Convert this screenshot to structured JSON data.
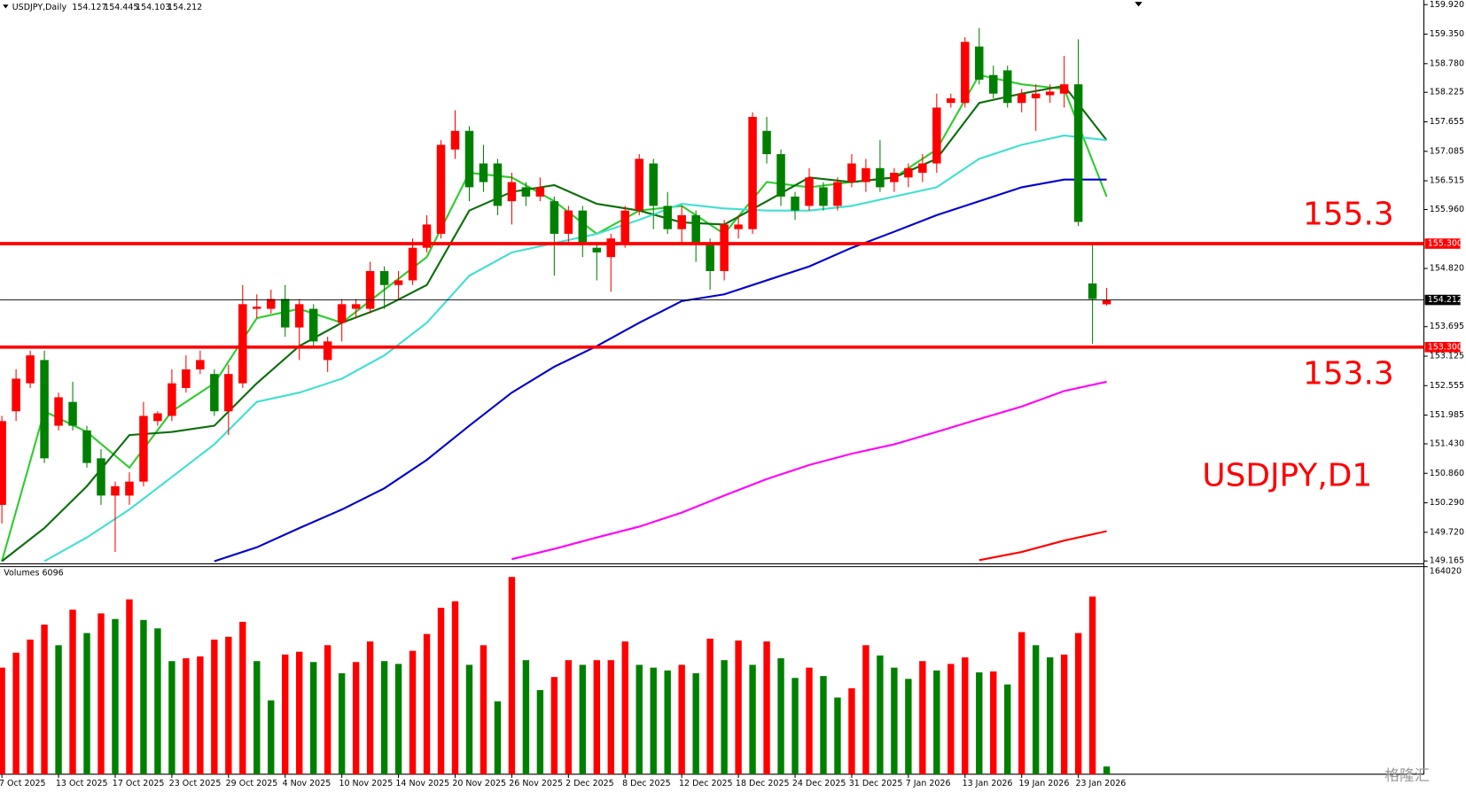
{
  "chart_data": {
    "type": "candlestick",
    "symbol_title": "USDJPY,Daily",
    "watermark": "格隆汇",
    "bull_color": "#ff0000",
    "bear_color": "#008000",
    "ylim": [
      149.11,
      160.01
    ],
    "yticks": [
      {
        "value": 159.92,
        "label": "159.920"
      },
      {
        "value": 159.35,
        "label": "159.350"
      },
      {
        "value": 158.78,
        "label": "158.780"
      },
      {
        "value": 158.225,
        "label": "158.225"
      },
      {
        "value": 157.655,
        "label": "157.655"
      },
      {
        "value": 157.085,
        "label": "157.085"
      },
      {
        "value": 156.515,
        "label": "156.515"
      },
      {
        "value": 155.96,
        "label": "155.960"
      },
      {
        "value": 154.82,
        "label": "154.820"
      },
      {
        "value": 153.695,
        "label": "153.695"
      },
      {
        "value": 153.125,
        "label": "153.125"
      },
      {
        "value": 152.555,
        "label": "152.555"
      },
      {
        "value": 151.985,
        "label": "151.985"
      },
      {
        "value": 151.43,
        "label": "151.430"
      },
      {
        "value": 150.86,
        "label": "150.860"
      },
      {
        "value": 150.29,
        "label": "150.290"
      },
      {
        "value": 149.72,
        "label": "149.720"
      },
      {
        "value": 149.165,
        "label": "149.165"
      }
    ],
    "xticks": [
      {
        "value": 0,
        "label": "7 Oct 2025"
      },
      {
        "value": 4,
        "label": "13 Oct 2025"
      },
      {
        "value": 8,
        "label": "17 Oct 2025"
      },
      {
        "value": 12,
        "label": "23 Oct 2025"
      },
      {
        "value": 16,
        "label": "29 Oct 2025"
      },
      {
        "value": 20,
        "label": "4 Nov 2025"
      },
      {
        "value": 24,
        "label": "10 Nov 2025"
      },
      {
        "value": 28,
        "label": "14 Nov 2025"
      },
      {
        "value": 32,
        "label": "20 Nov 2025"
      },
      {
        "value": 36,
        "label": "26 Nov 2025"
      },
      {
        "value": 40,
        "label": "2 Dec 2025"
      },
      {
        "value": 44,
        "label": "8 Dec 2025"
      },
      {
        "value": 48,
        "label": "12 Dec 2025"
      },
      {
        "value": 52,
        "label": "18 Dec 2025"
      },
      {
        "value": 56,
        "label": "24 Dec 2025"
      },
      {
        "value": 60,
        "label": "31 Dec 2025"
      },
      {
        "value": 64,
        "label": "7 Jan 2026"
      },
      {
        "value": 68,
        "label": "13 Jan 2026"
      },
      {
        "value": 72,
        "label": "19 Jan 2026"
      },
      {
        "value": 76,
        "label": "23 Jan 2026"
      }
    ],
    "candles": [
      [
        150.25,
        151.97,
        149.89,
        151.87
      ],
      [
        152.06,
        152.87,
        151.87,
        152.69
      ],
      [
        152.6,
        153.23,
        152.51,
        153.14
      ],
      [
        153.05,
        153.23,
        151.06,
        151.15
      ],
      [
        151.78,
        152.42,
        151.69,
        152.33
      ],
      [
        152.24,
        152.63,
        151.69,
        151.78
      ],
      [
        151.69,
        151.78,
        150.97,
        151.06
      ],
      [
        151.15,
        151.33,
        150.25,
        150.43
      ],
      [
        150.43,
        150.7,
        149.34,
        150.61
      ],
      [
        150.43,
        150.88,
        150.25,
        150.7
      ],
      [
        150.7,
        152.24,
        150.61,
        151.97
      ],
      [
        151.87,
        152.06,
        151.78,
        152.02
      ],
      [
        151.97,
        152.87,
        151.87,
        152.6
      ],
      [
        152.51,
        153.14,
        152.42,
        152.87
      ],
      [
        152.87,
        153.23,
        152.78,
        153.05
      ],
      [
        152.78,
        152.87,
        151.97,
        152.06
      ],
      [
        152.06,
        152.96,
        151.6,
        152.78
      ],
      [
        152.6,
        154.5,
        152.51,
        154.13
      ],
      [
        154.04,
        154.32,
        153.86,
        154.08
      ],
      [
        154.04,
        154.41,
        153.95,
        154.23
      ],
      [
        154.23,
        154.5,
        153.5,
        153.68
      ],
      [
        153.68,
        154.23,
        153.05,
        154.13
      ],
      [
        154.04,
        154.13,
        153.32,
        153.41
      ],
      [
        153.05,
        153.5,
        152.82,
        153.41
      ],
      [
        153.77,
        154.23,
        153.41,
        154.13
      ],
      [
        154.04,
        154.23,
        153.86,
        154.13
      ],
      [
        154.04,
        154.95,
        153.95,
        154.77
      ],
      [
        154.77,
        154.86,
        154.04,
        154.5
      ],
      [
        154.5,
        154.77,
        154.23,
        154.59
      ],
      [
        154.59,
        155.4,
        154.5,
        155.22
      ],
      [
        155.22,
        155.85,
        155.13,
        155.67
      ],
      [
        155.49,
        157.3,
        155.4,
        157.21
      ],
      [
        157.12,
        157.88,
        156.94,
        157.48
      ],
      [
        157.48,
        157.57,
        156.12,
        156.39
      ],
      [
        156.85,
        157.21,
        156.3,
        156.49
      ],
      [
        156.85,
        156.94,
        155.85,
        156.03
      ],
      [
        156.12,
        156.67,
        155.67,
        156.49
      ],
      [
        156.39,
        156.49,
        156.03,
        156.21
      ],
      [
        156.21,
        156.58,
        156.12,
        156.39
      ],
      [
        156.12,
        156.21,
        154.68,
        155.49
      ],
      [
        155.49,
        156.03,
        155.31,
        155.94
      ],
      [
        155.94,
        156.03,
        155.04,
        155.31
      ],
      [
        155.22,
        155.31,
        154.59,
        155.13
      ],
      [
        155.04,
        155.49,
        154.37,
        155.4
      ],
      [
        155.31,
        156.03,
        155.22,
        155.94
      ],
      [
        155.94,
        157.03,
        155.85,
        156.94
      ],
      [
        156.85,
        156.94,
        155.58,
        156.03
      ],
      [
        156.03,
        156.3,
        155.49,
        155.58
      ],
      [
        155.58,
        156.03,
        155.31,
        155.85
      ],
      [
        155.85,
        155.94,
        154.95,
        155.31
      ],
      [
        155.31,
        155.4,
        154.41,
        154.77
      ],
      [
        154.77,
        155.76,
        154.59,
        155.67
      ],
      [
        155.58,
        155.85,
        155.4,
        155.67
      ],
      [
        155.58,
        157.84,
        155.49,
        157.75
      ],
      [
        157.48,
        157.75,
        156.85,
        157.03
      ],
      [
        157.03,
        157.12,
        156.03,
        156.21
      ],
      [
        156.21,
        156.3,
        155.76,
        155.94
      ],
      [
        156.03,
        156.76,
        155.94,
        156.58
      ],
      [
        156.39,
        156.49,
        155.94,
        156.03
      ],
      [
        156.03,
        156.58,
        155.94,
        156.49
      ],
      [
        156.49,
        157.03,
        156.39,
        156.85
      ],
      [
        156.49,
        156.94,
        156.3,
        156.76
      ],
      [
        156.76,
        157.3,
        156.3,
        156.39
      ],
      [
        156.49,
        156.76,
        156.3,
        156.67
      ],
      [
        156.58,
        156.85,
        156.39,
        156.76
      ],
      [
        156.67,
        157.03,
        156.49,
        156.85
      ],
      [
        156.85,
        158.2,
        156.67,
        157.93
      ],
      [
        158.02,
        158.2,
        157.93,
        158.11
      ],
      [
        158.02,
        159.29,
        157.93,
        159.2
      ],
      [
        159.11,
        159.47,
        158.38,
        158.47
      ],
      [
        158.56,
        158.74,
        158.11,
        158.2
      ],
      [
        158.65,
        158.74,
        157.93,
        158.02
      ],
      [
        158.02,
        158.29,
        157.84,
        158.2
      ],
      [
        158.11,
        158.38,
        157.48,
        158.2
      ],
      [
        158.17,
        158.38,
        158.02,
        158.24
      ],
      [
        158.2,
        158.93,
        157.93,
        158.38
      ],
      [
        158.38,
        159.25,
        155.64,
        155.72
      ],
      [
        154.53,
        155.31,
        153.36,
        154.23
      ],
      [
        154.127,
        154.445,
        154.103,
        154.212
      ]
    ],
    "ma_x": [
      0,
      3,
      6,
      9,
      12,
      15,
      18,
      21,
      24,
      27,
      30,
      33,
      36,
      39,
      42,
      45,
      48,
      51,
      54,
      57,
      60,
      63,
      66,
      69,
      72,
      75,
      78
    ],
    "series": [
      {
        "color": "#2ecc2e",
        "values": [
          149.16,
          152.06,
          151.66,
          150.97,
          152.06,
          152.6,
          153.86,
          154.04,
          153.77,
          154.41,
          155.04,
          156.67,
          156.58,
          156.12,
          155.49,
          155.94,
          156.03,
          155.49,
          156.49,
          156.39,
          156.49,
          156.58,
          157.12,
          158.56,
          158.38,
          158.29,
          156.21
        ]
      },
      {
        "color": "#0b6e0b",
        "values": [
          149.16,
          149.8,
          150.61,
          151.6,
          151.66,
          151.78,
          152.6,
          153.32,
          153.77,
          154.08,
          154.5,
          155.94,
          156.3,
          156.43,
          156.07,
          155.94,
          155.71,
          155.67,
          156.12,
          156.58,
          156.49,
          156.58,
          156.94,
          158.02,
          158.2,
          158.35,
          157.3
        ]
      },
      {
        "color": "#40e0d0",
        "values": [
          null,
          149.16,
          149.62,
          150.16,
          150.79,
          151.42,
          152.24,
          152.42,
          152.69,
          153.14,
          153.77,
          154.68,
          155.13,
          155.31,
          155.49,
          155.76,
          156.07,
          155.98,
          155.94,
          155.94,
          156.03,
          156.21,
          156.39,
          156.94,
          157.21,
          157.39,
          157.3
        ]
      },
      {
        "color": "#0000cd",
        "values": [
          null,
          null,
          null,
          null,
          null,
          149.16,
          149.43,
          149.8,
          150.16,
          150.57,
          151.12,
          151.78,
          152.42,
          152.92,
          153.32,
          153.77,
          154.19,
          154.32,
          154.59,
          154.86,
          155.22,
          155.53,
          155.85,
          156.12,
          156.39,
          156.54,
          156.54
        ]
      },
      {
        "color": "#ff00ff",
        "values": [
          null,
          null,
          null,
          null,
          null,
          null,
          null,
          null,
          null,
          null,
          null,
          null,
          149.2,
          149.4,
          149.62,
          149.83,
          150.1,
          150.43,
          150.75,
          151.02,
          151.24,
          151.42,
          151.66,
          151.91,
          152.15,
          152.45,
          152.63
        ]
      },
      {
        "color": "#ff0000",
        "values": [
          null,
          null,
          null,
          null,
          null,
          null,
          null,
          null,
          null,
          null,
          null,
          null,
          null,
          null,
          null,
          null,
          null,
          null,
          null,
          null,
          null,
          null,
          null,
          149.18,
          149.34,
          149.56,
          149.74
        ]
      }
    ],
    "levels": [
      {
        "value": 155.3,
        "label": "155.3",
        "tag": "155.300",
        "color": "#ff0000"
      },
      {
        "value": 153.3,
        "label": "153.3",
        "tag": "153.300",
        "color": "#ff0000"
      }
    ],
    "current_price": 154.212,
    "annotation": "USDJPY,D1",
    "volume_title": "Volumes",
    "volume_up_color": "#ff0000",
    "volume_down_color": "#008000",
    "volume_ylim": [
      0,
      164020
    ],
    "volume_yticks": [
      164020
    ],
    "volumes": [
      84223,
      96044,
      106387,
      118208,
      101954,
      130029,
      111559,
      127074,
      122641,
      138156,
      121902,
      115253,
      89395,
      91611,
      93089,
      106387,
      108604,
      120424,
      89395,
      58365,
      94566,
      96783,
      88656,
      101954,
      79790,
      88656,
      104910,
      89395,
      87178,
      97522,
      110820,
      131506,
      136678,
      86440,
      101954,
      57626,
      155887,
      90134,
      66492,
      76835,
      90134,
      86440,
      90134,
      90134,
      104910,
      86440,
      84223,
      82007,
      86440,
      79790,
      107126,
      90134,
      105649,
      86440,
      104910,
      91611,
      76096,
      84223,
      77574,
      60582,
      67970,
      101954,
      93827,
      84223,
      75358,
      89395,
      82007,
      87178,
      92350,
      80530,
      81268,
      70925,
      112298,
      101954,
      92350,
      94566,
      111559,
      140372,
      6096
    ]
  }
}
